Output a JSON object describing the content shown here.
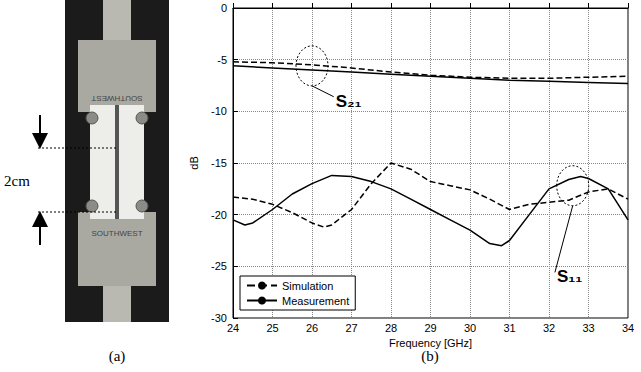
{
  "chart_data": {
    "type": "line",
    "xlabel": "Frequency [GHz]",
    "ylabel": "dB",
    "xlim": [
      24,
      34
    ],
    "xticks": [
      24,
      25,
      26,
      27,
      28,
      29,
      30,
      31,
      32,
      33,
      34
    ],
    "ylim": [
      -30,
      0
    ],
    "yticks": [
      -30,
      -25,
      -20,
      -15,
      -10,
      -5,
      0
    ],
    "grid": true,
    "legend": "lower left",
    "series": [
      {
        "name": "Simulation",
        "color": "#000000",
        "line_style": "dashed",
        "x": [
          24,
          25,
          26,
          27,
          28,
          29,
          30,
          31,
          32,
          33,
          34
        ],
        "values": [
          -5.2,
          -5.3,
          -5.5,
          -5.8,
          -6.2,
          -6.5,
          -6.7,
          -6.8,
          -6.8,
          -6.7,
          -6.6
        ]
      },
      {
        "name": "Measurement",
        "color": "#000000",
        "line_style": "solid",
        "x": [
          24,
          25,
          26,
          27,
          28,
          29,
          30,
          31,
          32,
          33,
          34
        ],
        "values": [
          -5.6,
          -5.8,
          -6.0,
          -6.2,
          -6.4,
          -6.6,
          -6.8,
          -7.0,
          -7.1,
          -7.2,
          -7.3
        ]
      },
      {
        "name": "Simulation",
        "color": "#000000",
        "line_style": "dashed",
        "x": [
          24,
          24.5,
          25,
          25.5,
          26,
          26.3,
          26.5,
          27,
          27.5,
          28,
          28.5,
          29,
          29.5,
          30,
          30.5,
          31,
          31.5,
          32,
          32.5,
          33,
          33.5,
          34
        ],
        "values": [
          -18.3,
          -18.5,
          -19,
          -19.8,
          -20.8,
          -21.2,
          -21,
          -19.5,
          -17,
          -15,
          -15.6,
          -16.8,
          -17.2,
          -17.6,
          -18.5,
          -19.5,
          -19,
          -18.8,
          -18.6,
          -17.8,
          -17.5,
          -18.5
        ]
      },
      {
        "name": "Measurement",
        "color": "#000000",
        "line_style": "solid",
        "x": [
          24,
          24.3,
          24.5,
          25,
          25.5,
          26,
          26.5,
          27,
          27.5,
          28,
          28.5,
          29,
          29.5,
          30,
          30.5,
          30.8,
          31,
          31.5,
          32,
          32.5,
          32.8,
          33,
          33.5,
          34
        ],
        "values": [
          -20.5,
          -21,
          -20.8,
          -19.5,
          -18,
          -17,
          -16.2,
          -16.3,
          -16.8,
          -17.5,
          -18.5,
          -19.5,
          -20.5,
          -21.5,
          -22.8,
          -23,
          -22.5,
          -20,
          -17.5,
          -16.6,
          -16.3,
          -16.5,
          -17.5,
          -20.5
        ]
      }
    ],
    "annotations": [
      {
        "text": "S₂₁",
        "x": 26.6,
        "y": -8.2,
        "target_x": 26,
        "target_y": -5.6
      },
      {
        "text": "S₁₁",
        "x": 32.2,
        "y": -25.2,
        "target_x": 32.6,
        "target_y": -17.2
      }
    ]
  },
  "figure": {
    "panels": [
      {
        "label": "(a)",
        "dimension": "2cm",
        "photo_texts": [
          "SOUTHWEST",
          "SOUTHWEST"
        ]
      },
      {
        "label": "(b)"
      }
    ]
  }
}
